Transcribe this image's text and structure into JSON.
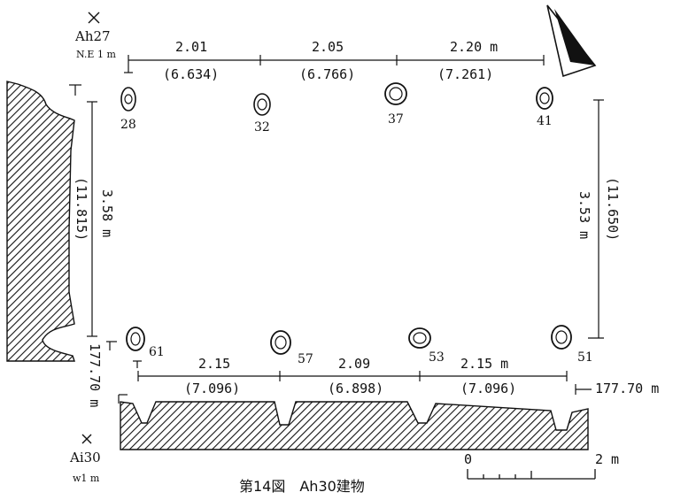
{
  "figure": {
    "caption": "第14図　Ah30建物",
    "north_indicator": "north-arrow-icon"
  },
  "grid_points": {
    "top_name": "Ah27",
    "top_offset": "N.E 1 m",
    "bottom_name": "Ai30",
    "bottom_offset": "w1 m"
  },
  "posts": [
    {
      "id": "28"
    },
    {
      "id": "32"
    },
    {
      "id": "37"
    },
    {
      "id": "41"
    },
    {
      "id": "61"
    },
    {
      "id": "57"
    },
    {
      "id": "53"
    },
    {
      "id": "51"
    }
  ],
  "dimensions": {
    "top": [
      {
        "m": "2.01",
        "shaku": "(6.634)"
      },
      {
        "m": "2.05",
        "shaku": "(6.766)"
      },
      {
        "m": "2.20 m",
        "shaku": "(7.261)"
      }
    ],
    "bottom": [
      {
        "m": "2.15",
        "shaku": "(7.096)"
      },
      {
        "m": "2.09",
        "shaku": "(6.898)"
      },
      {
        "m": "2.15 m",
        "shaku": "(7.096)"
      }
    ],
    "left": {
      "m": "3.58 m",
      "shaku": "(11.815)"
    },
    "right": {
      "m": "3.53 m",
      "shaku": "(11.650)"
    }
  },
  "elevations": {
    "left": "177.70 m",
    "right": "177.70 m"
  },
  "scale_bar": {
    "start": "0",
    "end": "2 m"
  }
}
